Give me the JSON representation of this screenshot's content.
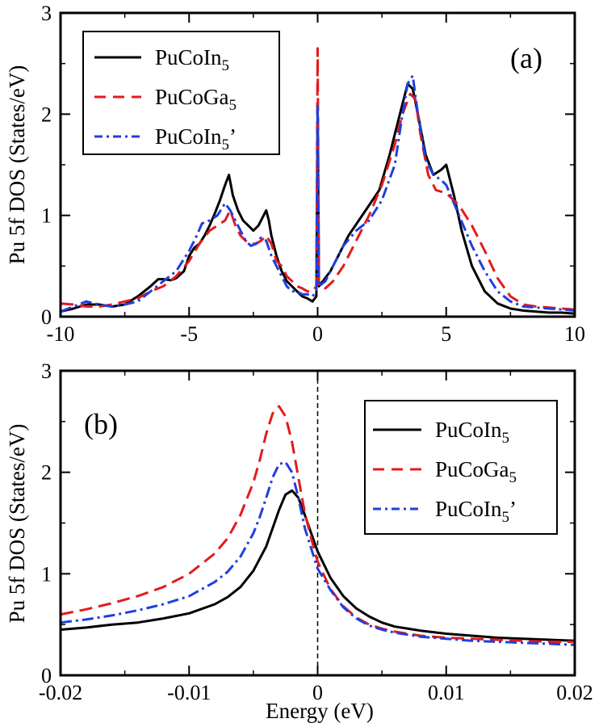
{
  "figure": {
    "xlabel": "Energy (eV)"
  },
  "chart_data": [
    {
      "type": "line",
      "panel": "(a)",
      "ylabel": "Pu 5f DOS (States/eV)",
      "xlim": [
        -10,
        10
      ],
      "ylim": [
        0,
        3
      ],
      "xticks": [
        -10,
        -5,
        0,
        5,
        10
      ],
      "xtick_labels": [
        "-10",
        "-5",
        "0",
        "5",
        "10"
      ],
      "yticks": [
        0,
        1,
        2,
        3
      ],
      "ytick_labels": [
        "0",
        "1",
        "2",
        "3"
      ],
      "legend": {
        "position": "top-left"
      },
      "series": [
        {
          "name": "PuCoIn5",
          "label_main": "PuCoIn",
          "label_sub": "5",
          "label_suffix": "",
          "color": "#000000",
          "dash": "solid",
          "x": [
            -10,
            -9.5,
            -9,
            -8.5,
            -8,
            -7.5,
            -7,
            -6.5,
            -6.2,
            -6,
            -5.7,
            -5.5,
            -5.2,
            -5,
            -4.8,
            -4.6,
            -4.4,
            -4.2,
            -4,
            -3.8,
            -3.6,
            -3.45,
            -3.3,
            -3.1,
            -2.9,
            -2.7,
            -2.5,
            -2.3,
            -2.1,
            -2.0,
            -1.9,
            -1.8,
            -1.6,
            -1.4,
            -1.2,
            -1.0,
            -0.8,
            -0.6,
            -0.4,
            -0.2,
            -0.05,
            0,
            0.05,
            0.2,
            0.5,
            0.8,
            1.2,
            1.6,
            2.0,
            2.4,
            2.8,
            3.2,
            3.5,
            3.7,
            3.9,
            4.2,
            4.5,
            4.8,
            5.0,
            5.3,
            5.6,
            6,
            6.5,
            7,
            7.5,
            8,
            8.5,
            9,
            9.5,
            10
          ],
          "y": [
            0.05,
            0.08,
            0.12,
            0.12,
            0.1,
            0.12,
            0.2,
            0.3,
            0.37,
            0.37,
            0.36,
            0.38,
            0.45,
            0.6,
            0.68,
            0.72,
            0.8,
            0.9,
            1.02,
            1.15,
            1.3,
            1.4,
            1.2,
            1.05,
            0.95,
            0.9,
            0.85,
            0.9,
            1.0,
            1.05,
            0.95,
            0.8,
            0.6,
            0.45,
            0.35,
            0.3,
            0.25,
            0.2,
            0.18,
            0.15,
            0.2,
            2.05,
            0.3,
            0.35,
            0.45,
            0.6,
            0.8,
            0.95,
            1.1,
            1.25,
            1.6,
            2.0,
            2.3,
            2.25,
            2.0,
            1.6,
            1.4,
            1.45,
            1.5,
            1.2,
            0.85,
            0.5,
            0.25,
            0.13,
            0.08,
            0.06,
            0.05,
            0.04,
            0.04,
            0.03
          ]
        },
        {
          "name": "PuCoGa5",
          "label_main": "PuCoGa",
          "label_sub": "5",
          "label_suffix": "",
          "color": "#e41a1c",
          "dash": "dashed",
          "x": [
            -10,
            -9.5,
            -9,
            -8.5,
            -8,
            -7.5,
            -7,
            -6.5,
            -6,
            -5.5,
            -5,
            -4.6,
            -4.2,
            -3.9,
            -3.6,
            -3.4,
            -3.2,
            -3.0,
            -2.8,
            -2.6,
            -2.4,
            -2.2,
            -2.0,
            -1.8,
            -1.6,
            -1.4,
            -1.2,
            -1.0,
            -0.8,
            -0.6,
            -0.4,
            -0.2,
            -0.05,
            0,
            0.05,
            0.3,
            0.6,
            1.0,
            1.5,
            2.0,
            2.5,
            3.0,
            3.3,
            3.6,
            3.8,
            4.0,
            4.3,
            4.6,
            5.0,
            5.5,
            6.0,
            6.5,
            7.0,
            7.5,
            8,
            8.5,
            9,
            9.5,
            10
          ],
          "y": [
            0.13,
            0.12,
            0.1,
            0.1,
            0.12,
            0.15,
            0.18,
            0.25,
            0.3,
            0.4,
            0.55,
            0.72,
            0.85,
            0.9,
            0.95,
            1.05,
            0.9,
            0.8,
            0.75,
            0.72,
            0.72,
            0.75,
            0.8,
            0.72,
            0.55,
            0.5,
            0.4,
            0.35,
            0.3,
            0.28,
            0.25,
            0.25,
            0.3,
            2.65,
            0.3,
            0.28,
            0.35,
            0.5,
            0.75,
            1.0,
            1.3,
            1.7,
            2.0,
            2.2,
            2.15,
            1.8,
            1.4,
            1.25,
            1.22,
            1.1,
            0.9,
            0.65,
            0.38,
            0.2,
            0.12,
            0.1,
            0.09,
            0.08,
            0.07
          ]
        },
        {
          "name": "PuCoIn5'",
          "label_main": "PuCoIn",
          "label_sub": "5",
          "label_suffix": "’",
          "color": "#1f3fe0",
          "dash": "dashdot",
          "x": [
            -10,
            -9.5,
            -9,
            -8.5,
            -8,
            -7.5,
            -7,
            -6.5,
            -6,
            -5.5,
            -5,
            -4.7,
            -4.5,
            -4.2,
            -3.9,
            -3.6,
            -3.4,
            -3.2,
            -3.0,
            -2.8,
            -2.6,
            -2.4,
            -2.2,
            -2.0,
            -1.8,
            -1.6,
            -1.4,
            -1.2,
            -1.0,
            -0.8,
            -0.6,
            -0.4,
            -0.2,
            -0.05,
            0,
            0.05,
            0.3,
            0.6,
            1.0,
            1.5,
            2.0,
            2.5,
            3.0,
            3.3,
            3.5,
            3.7,
            3.9,
            4.2,
            4.5,
            4.8,
            5.0,
            5.5,
            6.0,
            6.5,
            7.0,
            7.5,
            8,
            8.5,
            9,
            9.5,
            10
          ],
          "y": [
            0.05,
            0.1,
            0.15,
            0.12,
            0.1,
            0.12,
            0.15,
            0.25,
            0.35,
            0.45,
            0.65,
            0.8,
            0.92,
            0.95,
            1.0,
            1.12,
            1.05,
            0.95,
            0.85,
            0.75,
            0.7,
            0.72,
            0.78,
            0.75,
            0.6,
            0.5,
            0.4,
            0.3,
            0.25,
            0.25,
            0.22,
            0.22,
            0.2,
            0.25,
            2.1,
            0.3,
            0.35,
            0.5,
            0.7,
            0.85,
            0.95,
            1.15,
            1.5,
            2.0,
            2.3,
            2.38,
            2.0,
            1.55,
            1.4,
            1.35,
            1.3,
            1.0,
            0.7,
            0.45,
            0.25,
            0.15,
            0.1,
            0.09,
            0.08,
            0.07,
            0.06
          ]
        }
      ]
    },
    {
      "type": "line",
      "panel": "(b)",
      "ylabel": "Pu 5f DOS (States/eV)",
      "xlabel": "Energy (eV)",
      "xlim": [
        -0.02,
        0.02
      ],
      "ylim": [
        0,
        3
      ],
      "xticks": [
        -0.02,
        -0.01,
        0,
        0.01,
        0.02
      ],
      "xtick_labels": [
        "-0.02",
        "-0.01",
        "0",
        "0.01",
        "0.02"
      ],
      "yticks": [
        0,
        1,
        2,
        3
      ],
      "ytick_labels": [
        "0",
        "1",
        "2",
        "3"
      ],
      "legend": {
        "position": "top-right"
      },
      "series": [
        {
          "name": "PuCoIn5",
          "label_main": "PuCoIn",
          "label_sub": "5",
          "label_suffix": "",
          "color": "#000000",
          "dash": "solid",
          "x": [
            -0.02,
            -0.018,
            -0.016,
            -0.014,
            -0.012,
            -0.01,
            -0.008,
            -0.007,
            -0.006,
            -0.005,
            -0.004,
            -0.0035,
            -0.003,
            -0.0025,
            -0.002,
            -0.0015,
            -0.001,
            -0.0005,
            0,
            0.001,
            0.002,
            0.003,
            0.004,
            0.005,
            0.006,
            0.008,
            0.01,
            0.012,
            0.014,
            0.016,
            0.018,
            0.02
          ],
          "y": [
            0.45,
            0.47,
            0.5,
            0.52,
            0.56,
            0.61,
            0.7,
            0.77,
            0.87,
            1.03,
            1.27,
            1.45,
            1.63,
            1.78,
            1.82,
            1.75,
            1.58,
            1.4,
            1.22,
            0.96,
            0.78,
            0.66,
            0.58,
            0.52,
            0.48,
            0.44,
            0.41,
            0.39,
            0.37,
            0.36,
            0.35,
            0.34
          ]
        },
        {
          "name": "PuCoGa5",
          "label_main": "PuCoGa",
          "label_sub": "5",
          "label_suffix": "",
          "color": "#e41a1c",
          "dash": "dashed",
          "x": [
            -0.02,
            -0.018,
            -0.016,
            -0.014,
            -0.012,
            -0.01,
            -0.008,
            -0.007,
            -0.006,
            -0.005,
            -0.0045,
            -0.004,
            -0.0035,
            -0.003,
            -0.0025,
            -0.002,
            -0.0015,
            -0.001,
            -0.0005,
            0,
            0.001,
            0.002,
            0.003,
            0.004,
            0.005,
            0.006,
            0.008,
            0.01,
            0.012,
            0.014,
            0.016,
            0.018,
            0.02
          ],
          "y": [
            0.6,
            0.65,
            0.71,
            0.78,
            0.87,
            1.0,
            1.2,
            1.35,
            1.58,
            1.9,
            2.12,
            2.38,
            2.58,
            2.65,
            2.55,
            2.3,
            1.95,
            1.6,
            1.35,
            1.12,
            0.85,
            0.68,
            0.57,
            0.5,
            0.46,
            0.43,
            0.39,
            0.37,
            0.36,
            0.35,
            0.34,
            0.33,
            0.33
          ]
        },
        {
          "name": "PuCoIn5'",
          "label_main": "PuCoIn",
          "label_sub": "5",
          "label_suffix": "’",
          "color": "#1f3fe0",
          "dash": "dashdot",
          "x": [
            -0.02,
            -0.018,
            -0.016,
            -0.014,
            -0.012,
            -0.01,
            -0.008,
            -0.007,
            -0.006,
            -0.005,
            -0.0045,
            -0.004,
            -0.0035,
            -0.003,
            -0.0025,
            -0.002,
            -0.0015,
            -0.001,
            -0.0005,
            0,
            0.001,
            0.002,
            0.003,
            0.004,
            0.005,
            0.006,
            0.008,
            0.01,
            0.012,
            0.014,
            0.016,
            0.018,
            0.02
          ],
          "y": [
            0.52,
            0.55,
            0.59,
            0.64,
            0.7,
            0.78,
            0.92,
            1.02,
            1.17,
            1.4,
            1.56,
            1.75,
            1.95,
            2.08,
            2.1,
            2.0,
            1.75,
            1.45,
            1.25,
            1.05,
            0.84,
            0.67,
            0.56,
            0.49,
            0.45,
            0.42,
            0.38,
            0.36,
            0.34,
            0.33,
            0.32,
            0.31,
            0.3
          ]
        }
      ]
    }
  ]
}
